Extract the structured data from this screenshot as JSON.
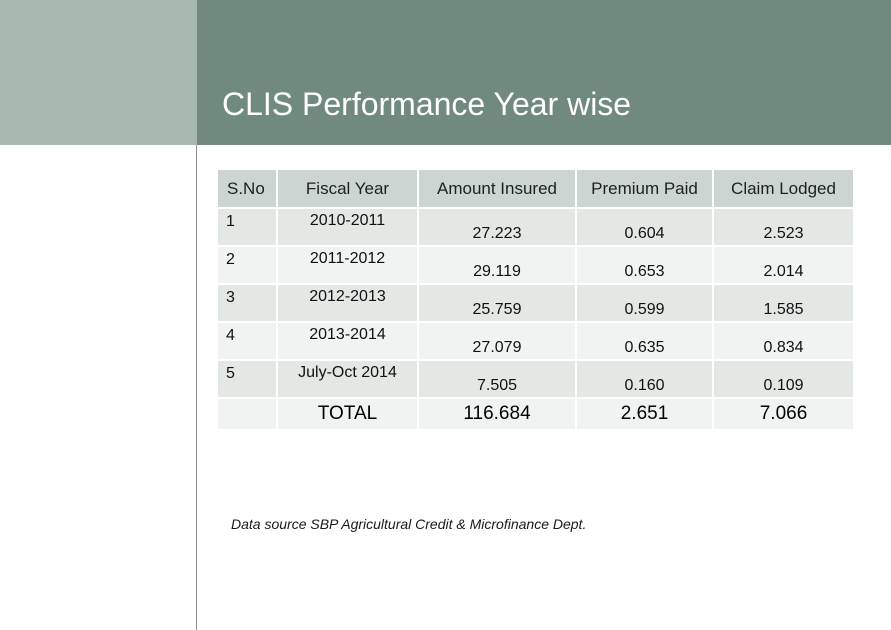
{
  "title": "CLIS Performance Year wise",
  "table": {
    "headers": [
      "S.No",
      "Fiscal Year",
      "Amount Insured",
      "Premium Paid",
      "Claim Lodged"
    ],
    "rows": [
      {
        "sno": "1",
        "fiscal_year": "2010-2011",
        "amount_insured": "27.223",
        "premium_paid": "0.604",
        "claim_lodged": "2.523"
      },
      {
        "sno": "2",
        "fiscal_year": "2011-2012",
        "amount_insured": "29.119",
        "premium_paid": "0.653",
        "claim_lodged": "2.014"
      },
      {
        "sno": "3",
        "fiscal_year": "2012-2013",
        "amount_insured": "25.759",
        "premium_paid": "0.599",
        "claim_lodged": "1.585"
      },
      {
        "sno": "4",
        "fiscal_year": "2013-2014",
        "amount_insured": "27.079",
        "premium_paid": "0.635",
        "claim_lodged": "0.834"
      },
      {
        "sno": "5",
        "fiscal_year": "July-Oct 2014",
        "amount_insured": "7.505",
        "premium_paid": "0.160",
        "claim_lodged": "0.109"
      }
    ],
    "total": {
      "sno": "",
      "label": "TOTAL",
      "amount_insured": "116.684",
      "premium_paid": "2.651",
      "claim_lodged": "7.066"
    }
  },
  "source_note": "Data source SBP Agricultural Credit & Microfinance Dept.",
  "colors": {
    "header_band": "#718a7f",
    "side_block": "#a9b8b1",
    "table_header": "#ccd5d1",
    "row_odd": "#e3e8e5",
    "row_even": "#f1f3f2"
  }
}
